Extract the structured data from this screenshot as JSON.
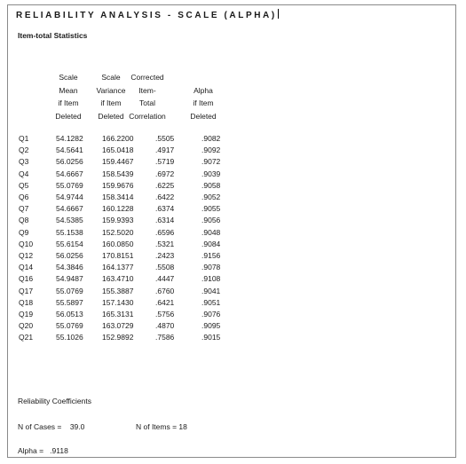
{
  "title": "RELIABILITY ANALYSIS - SCALE (ALPHA)",
  "subtitle": "Item-total Statistics",
  "headers": {
    "col1": [
      "Scale",
      "Mean",
      "if Item",
      "Deleted"
    ],
    "col2": [
      "Scale",
      "Variance",
      "if Item",
      "Deleted"
    ],
    "col3": [
      "Corrected",
      "Item-",
      "Total",
      "Correlation"
    ],
    "col4": [
      "Alpha",
      "if Item",
      "Deleted"
    ]
  },
  "rows": [
    {
      "item": "Q1",
      "mean": "54.1282",
      "variance": "166.2200",
      "corr": ".5505",
      "alpha": ".9082"
    },
    {
      "item": "Q2",
      "mean": "54.5641",
      "variance": "165.0418",
      "corr": ".4917",
      "alpha": ".9092"
    },
    {
      "item": "Q3",
      "mean": "56.0256",
      "variance": "159.4467",
      "corr": ".5719",
      "alpha": ".9072"
    },
    {
      "item": "Q4",
      "mean": "54.6667",
      "variance": "158.5439",
      "corr": ".6972",
      "alpha": ".9039"
    },
    {
      "item": "Q5",
      "mean": "55.0769",
      "variance": "159.9676",
      "corr": ".6225",
      "alpha": ".9058"
    },
    {
      "item": "Q6",
      "mean": "54.9744",
      "variance": "158.3414",
      "corr": ".6422",
      "alpha": ".9052"
    },
    {
      "item": "Q7",
      "mean": "54.6667",
      "variance": "160.1228",
      "corr": ".6374",
      "alpha": ".9055"
    },
    {
      "item": "Q8",
      "mean": "54.5385",
      "variance": "159.9393",
      "corr": ".6314",
      "alpha": ".9056"
    },
    {
      "item": "Q9",
      "mean": "55.1538",
      "variance": "152.5020",
      "corr": ".6596",
      "alpha": ".9048"
    },
    {
      "item": "Q10",
      "mean": "55.6154",
      "variance": "160.0850",
      "corr": ".5321",
      "alpha": ".9084"
    },
    {
      "item": "Q12",
      "mean": "56.0256",
      "variance": "170.8151",
      "corr": ".2423",
      "alpha": ".9156"
    },
    {
      "item": "Q14",
      "mean": "54.3846",
      "variance": "164.1377",
      "corr": ".5508",
      "alpha": ".9078"
    },
    {
      "item": "Q16",
      "mean": "54.9487",
      "variance": "163.4710",
      "corr": ".4447",
      "alpha": ".9108"
    },
    {
      "item": "Q17",
      "mean": "55.0769",
      "variance": "155.3887",
      "corr": ".6760",
      "alpha": ".9041"
    },
    {
      "item": "Q18",
      "mean": "55.5897",
      "variance": "157.1430",
      "corr": ".6421",
      "alpha": ".9051"
    },
    {
      "item": "Q19",
      "mean": "56.0513",
      "variance": "165.3131",
      "corr": ".5756",
      "alpha": ".9076"
    },
    {
      "item": "Q20",
      "mean": "55.0769",
      "variance": "163.0729",
      "corr": ".4870",
      "alpha": ".9095"
    },
    {
      "item": "Q21",
      "mean": "55.1026",
      "variance": "152.9892",
      "corr": ".7586",
      "alpha": ".9015"
    }
  ],
  "footer": {
    "coeff_label": "Reliability Coefficients",
    "cases": "N of Cases =    39.0",
    "items": "N of Items = 18",
    "alpha": "Alpha =   .9118"
  }
}
